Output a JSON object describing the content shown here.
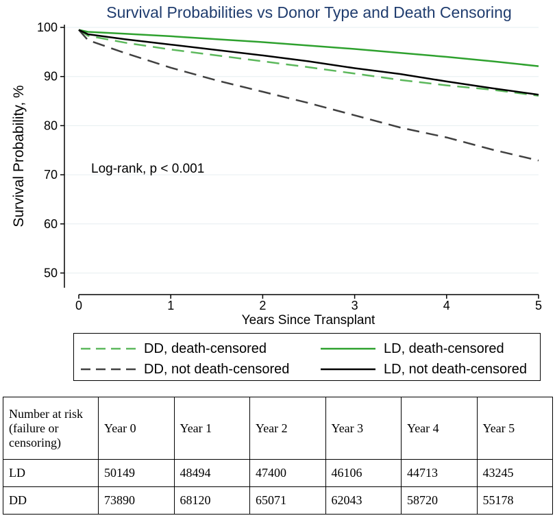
{
  "chart_data": {
    "type": "line",
    "title": "Survival Probabilities vs Donor Type and Death Censoring",
    "xlabel": "Years Since Transplant",
    "ylabel": "Survival Probability, %",
    "xlim": [
      0,
      5
    ],
    "ylim": [
      47,
      100
    ],
    "xticks": [
      "0",
      "1",
      "2",
      "3",
      "4",
      "5"
    ],
    "yticks": [
      "50",
      "60",
      "70",
      "80",
      "90",
      "100"
    ],
    "annotation": "Log-rank, p < 0.001",
    "x": [
      0,
      0.1,
      0.5,
      1,
      1.5,
      2,
      2.5,
      3,
      3.5,
      4,
      4.5,
      5
    ],
    "series": [
      {
        "name": "DD, death-censored",
        "color": "#5cb85c",
        "dash": "dashed",
        "values": [
          99.5,
          98.3,
          96.9,
          95.5,
          94.3,
          93.1,
          91.9,
          90.6,
          89.3,
          88.2,
          87.3,
          86.1
        ]
      },
      {
        "name": "LD, death-censored",
        "color": "#2ea12e",
        "dash": "solid",
        "values": [
          99.5,
          99.1,
          98.7,
          98.2,
          97.6,
          97.0,
          96.3,
          95.6,
          94.8,
          94.0,
          93.1,
          92.1
        ]
      },
      {
        "name": "DD, not death-censored",
        "color": "#404040",
        "dash": "dashed",
        "values": [
          99.5,
          97.4,
          94.8,
          91.8,
          89.2,
          86.9,
          84.6,
          82.1,
          79.6,
          77.6,
          75.1,
          72.9
        ]
      },
      {
        "name": "LD, not death-censored",
        "color": "#000000",
        "dash": "solid",
        "values": [
          99.5,
          98.6,
          97.6,
          96.5,
          95.4,
          94.3,
          93.1,
          91.7,
          90.5,
          89.0,
          87.6,
          86.3
        ]
      }
    ]
  },
  "legend": {
    "dd_censored": "DD, death-censored",
    "ld_censored": "LD, death-censored",
    "dd_not_censored": "DD, not death-censored",
    "ld_not_censored": "LD, not death-censored"
  },
  "risk_table": {
    "header": [
      "Number at risk (failure or censoring)",
      "Year 0",
      "Year 1",
      "Year 2",
      "Year 3",
      "Year 4",
      "Year 5"
    ],
    "rows": [
      [
        "LD",
        "50149",
        "48494",
        "47400",
        "46106",
        "44713",
        "43245"
      ],
      [
        "DD",
        "73890",
        "68120",
        "65071",
        "62043",
        "58720",
        "55178"
      ]
    ]
  }
}
